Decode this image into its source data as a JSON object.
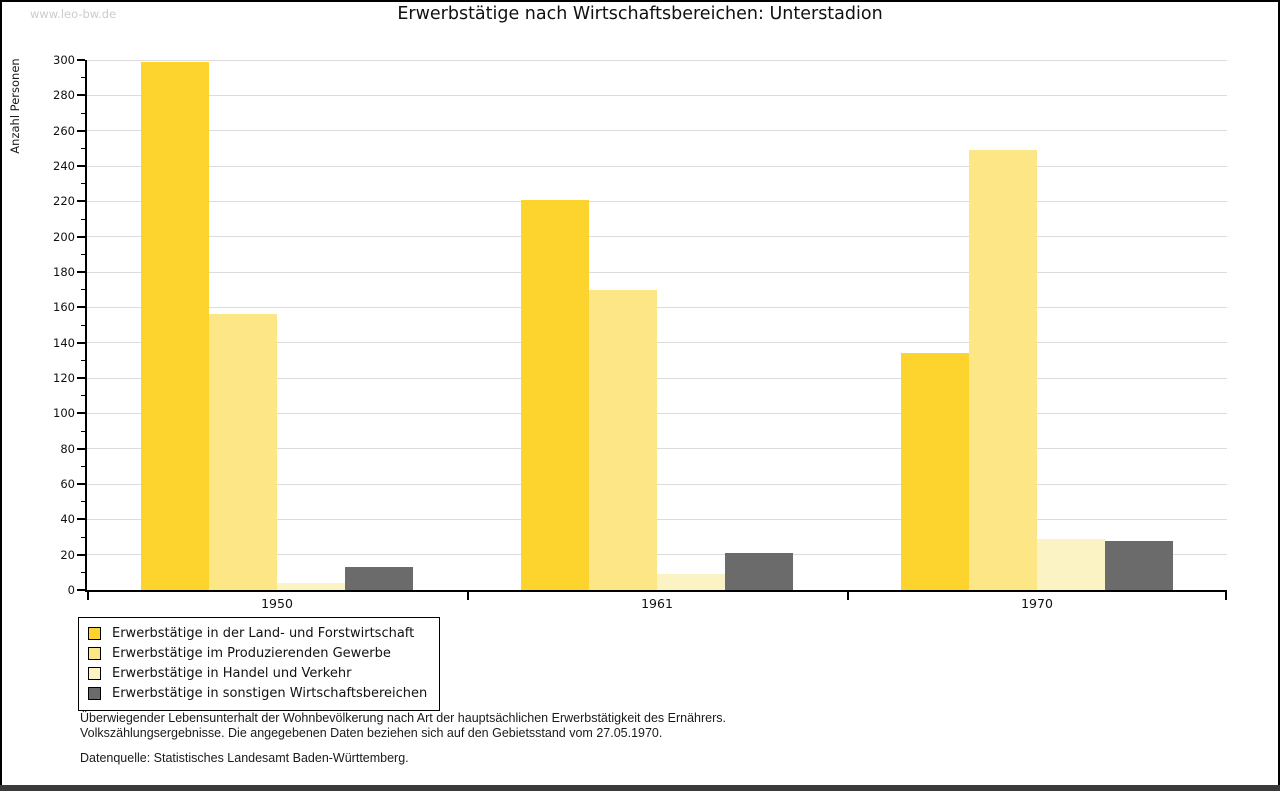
{
  "page": {
    "watermark": "www.leo-bw.de",
    "title": "Erwerbstätige nach Wirtschaftsbereichen: Unterstadion"
  },
  "chart_data": {
    "type": "bar",
    "title": "Erwerbstätige nach Wirtschaftsbereichen: Unterstadion",
    "xlabel": "",
    "ylabel": "Anzahl Personen",
    "ylim": [
      0,
      300
    ],
    "ytick_step": 20,
    "yminor_step": 10,
    "grid": true,
    "legend_position": "bottom-left",
    "categories": [
      "1950",
      "1961",
      "1970"
    ],
    "series": [
      {
        "name": "Erwerbstätige in der Land- und Forstwirtschaft",
        "color": "#FCD42D",
        "values": [
          299,
          221,
          134
        ]
      },
      {
        "name": "Erwerbstätige im Produzierenden Gewerbe",
        "color": "#FCE685",
        "values": [
          156,
          170,
          249
        ]
      },
      {
        "name": "Erwerbstätige in Handel und Verkehr",
        "color": "#FBF3C4",
        "values": [
          4,
          9,
          29
        ]
      },
      {
        "name": "Erwerbstätige in sonstigen Wirtschaftsbereichen",
        "color": "#6B6B6B",
        "values": [
          13,
          21,
          28
        ]
      }
    ]
  },
  "footnotes": {
    "line1": "Überwiegender Lebensunterhalt der Wohnbevölkerung nach Art der hauptsächlichen Erwerbstätigkeit des Ernährers.",
    "line2": "Volkszählungsergebnisse. Die angegebenen Daten beziehen sich auf den Gebietsstand vom 27.05.1970.",
    "source": "Datenquelle: Statistisches Landesamt Baden-Württemberg."
  },
  "colors": {
    "grid": "#dcdcdc",
    "axis": "#000000",
    "watermark": "#cccccc",
    "bottom_bar": "#3a3a3a"
  }
}
